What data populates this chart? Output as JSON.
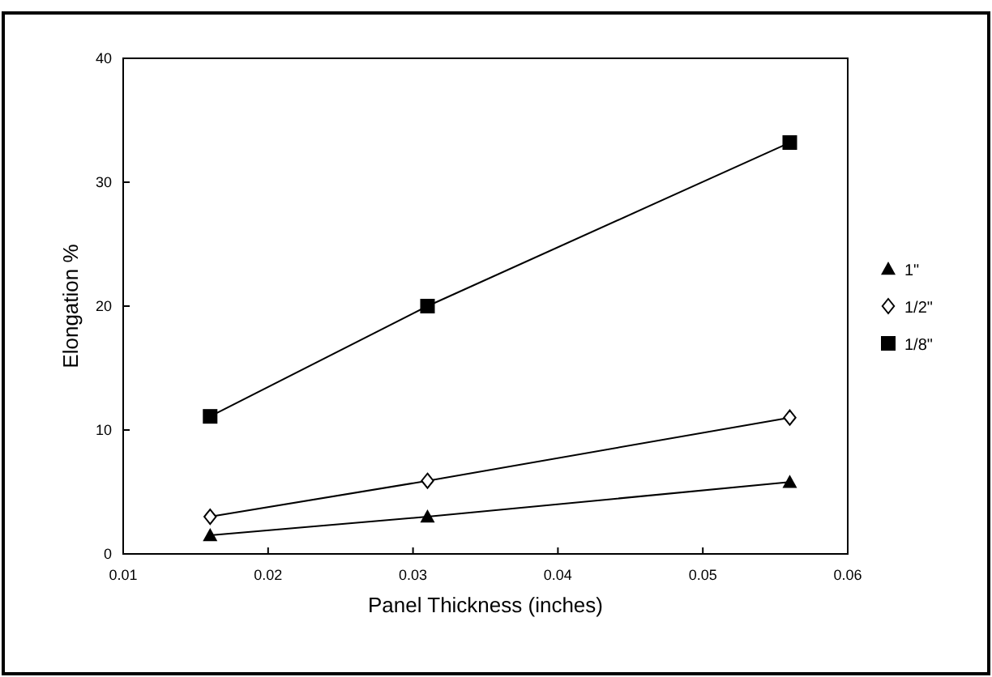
{
  "chart_data": {
    "type": "line",
    "xlabel": "Panel Thickness (inches)",
    "ylabel": "Elongation %",
    "x": [
      0.016,
      0.031,
      0.056
    ],
    "series": [
      {
        "name": "1\"",
        "color": "#000000",
        "marker": "triangle",
        "values": [
          1.5,
          3.0,
          5.8
        ]
      },
      {
        "name": "1/2\"",
        "color": "#000000",
        "marker": "diamond",
        "values": [
          3.0,
          5.9,
          11.0
        ]
      },
      {
        "name": "1/8\"",
        "color": "#000000",
        "marker": "square",
        "values": [
          11.1,
          20.0,
          33.2
        ]
      }
    ],
    "xlim": [
      0.01,
      0.06
    ],
    "xticks": [
      0.01,
      0.02,
      0.03,
      0.04,
      0.05,
      0.06
    ],
    "ylim": [
      0,
      40
    ],
    "yticks": [
      0,
      10,
      20,
      30,
      40
    ],
    "grid": false,
    "legend": "right",
    "line_style": "solid"
  }
}
